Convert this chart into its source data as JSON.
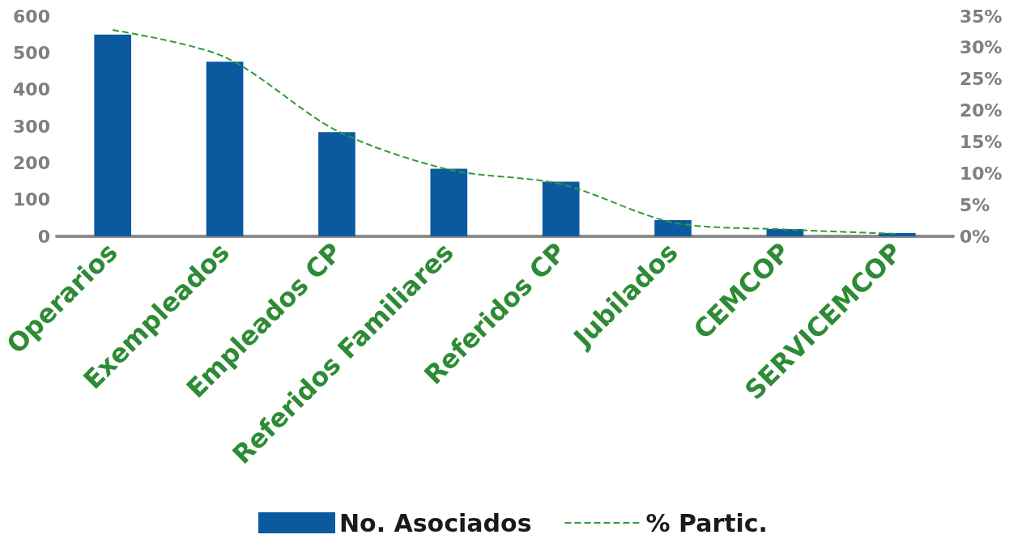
{
  "chart_data": {
    "type": "bar",
    "categories": [
      "Operarios",
      "Exempleados",
      "Empleados CP",
      "Referidos Familiares",
      "Referidos CP",
      "Jubilados",
      "CEMCOP",
      "SERVICEMCOP"
    ],
    "series": [
      {
        "name": "No. Asociados",
        "color": "#0b5aa0",
        "values": [
          550,
          476,
          284,
          184,
          149,
          44,
          20,
          9
        ]
      },
      {
        "name": "% Partic.",
        "type": "line",
        "axis": "y2",
        "color": "#2e9a3a",
        "line_style": "dashed",
        "marker": "none",
        "values": [
          32.8,
          28.5,
          16.8,
          10.6,
          8.3,
          2.2,
          1.1,
          0.4
        ]
      }
    ],
    "ylim": [
      0,
      600
    ],
    "yticks": [
      0,
      100,
      200,
      300,
      400,
      500,
      600
    ],
    "y2lim": [
      0,
      35
    ],
    "y2ticks": [
      {
        "value": 0,
        "label": "0%"
      },
      {
        "value": 5,
        "label": "5%"
      },
      {
        "value": 10,
        "label": "10%"
      },
      {
        "value": 15,
        "label": "15%"
      },
      {
        "value": 20,
        "label": "20%"
      },
      {
        "value": 25,
        "label": "25%"
      },
      {
        "value": 30,
        "label": "30%"
      },
      {
        "value": 35,
        "label": "35%"
      }
    ],
    "grid": false,
    "legend": "bottom"
  }
}
